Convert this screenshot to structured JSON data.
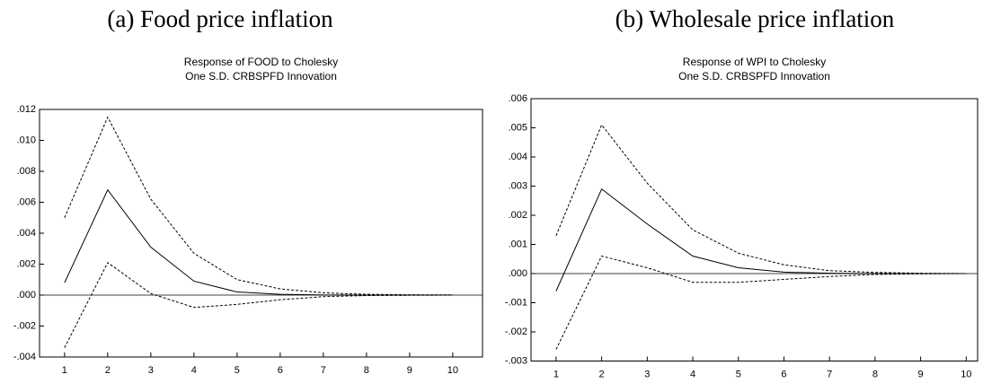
{
  "chart_data": [
    {
      "type": "line",
      "caption": "(a) Food price inflation",
      "title": "Response of FOOD to Cholesky",
      "subtitle": "One S.D. CRBSPFD Innovation",
      "x": [
        1,
        2,
        3,
        4,
        5,
        6,
        7,
        8,
        9,
        10
      ],
      "xlim": [
        0.42,
        10.69
      ],
      "xticks": [
        1,
        2,
        3,
        4,
        5,
        6,
        7,
        8,
        9,
        10
      ],
      "ylim": [
        -0.004,
        0.012
      ],
      "yticks": [
        {
          "value": -0.004,
          "label": "-.004"
        },
        {
          "value": -0.002,
          "label": "-.002"
        },
        {
          "value": 0,
          "label": ".000"
        },
        {
          "value": 0.002,
          "label": ".002"
        },
        {
          "value": 0.004,
          "label": ".004"
        },
        {
          "value": 0.006,
          "label": ".006"
        },
        {
          "value": 0.008,
          "label": ".008"
        },
        {
          "value": 0.01,
          "label": ".010"
        },
        {
          "value": 0.012,
          "label": ".012"
        }
      ],
      "zero_line": true,
      "series": [
        {
          "color": "#000000",
          "style": "solid",
          "values": [
            0.0008,
            0.0068,
            0.0031,
            0.0009,
            0.0002,
            5e-05,
            1e-05,
            0,
            0,
            0
          ]
        },
        {
          "color": "#000000",
          "style": "dashed",
          "values": [
            0.005,
            0.0115,
            0.0062,
            0.0027,
            0.001,
            0.0004,
            0.00015,
            5e-05,
            2e-05,
            1e-05
          ]
        },
        {
          "color": "#000000",
          "style": "dashed",
          "values": [
            -0.0034,
            0.0021,
            0.0001,
            -0.0008,
            -0.0006,
            -0.0003,
            -0.0001,
            -3e-05,
            -1e-05,
            0
          ]
        }
      ]
    },
    {
      "type": "line",
      "caption": "(b) Wholesale price inflation",
      "title": "Response of WPI to Cholesky",
      "subtitle": "One S.D. CRBSPFD Innovation",
      "x": [
        1,
        2,
        3,
        4,
        5,
        6,
        7,
        8,
        9,
        10
      ],
      "xlim": [
        0.45,
        10.25
      ],
      "xticks": [
        1,
        2,
        3,
        4,
        5,
        6,
        7,
        8,
        9,
        10
      ],
      "ylim": [
        -0.003,
        0.006
      ],
      "yticks": [
        {
          "value": -0.003,
          "label": "-.003"
        },
        {
          "value": -0.002,
          "label": "-.002"
        },
        {
          "value": -0.001,
          "label": "-.001"
        },
        {
          "value": 0,
          "label": ".000"
        },
        {
          "value": 0.001,
          "label": ".001"
        },
        {
          "value": 0.002,
          "label": ".002"
        },
        {
          "value": 0.003,
          "label": ".003"
        },
        {
          "value": 0.004,
          "label": ".004"
        },
        {
          "value": 0.005,
          "label": ".005"
        },
        {
          "value": 0.006,
          "label": ".006"
        }
      ],
      "zero_line": true,
      "series": [
        {
          "color": "#000000",
          "style": "solid",
          "values": [
            -0.0006,
            0.0029,
            0.0017,
            0.0006,
            0.0002,
            5e-05,
            1e-05,
            0,
            0,
            0
          ]
        },
        {
          "color": "#000000",
          "style": "dashed",
          "values": [
            0.0013,
            0.0051,
            0.0031,
            0.0015,
            0.0007,
            0.0003,
            0.0001,
            4e-05,
            1e-05,
            0
          ]
        },
        {
          "color": "#000000",
          "style": "dashed",
          "values": [
            -0.0026,
            0.0006,
            0.0002,
            -0.0003,
            -0.0003,
            -0.0002,
            -0.0001,
            -3e-05,
            -1e-05,
            0
          ]
        }
      ]
    }
  ]
}
